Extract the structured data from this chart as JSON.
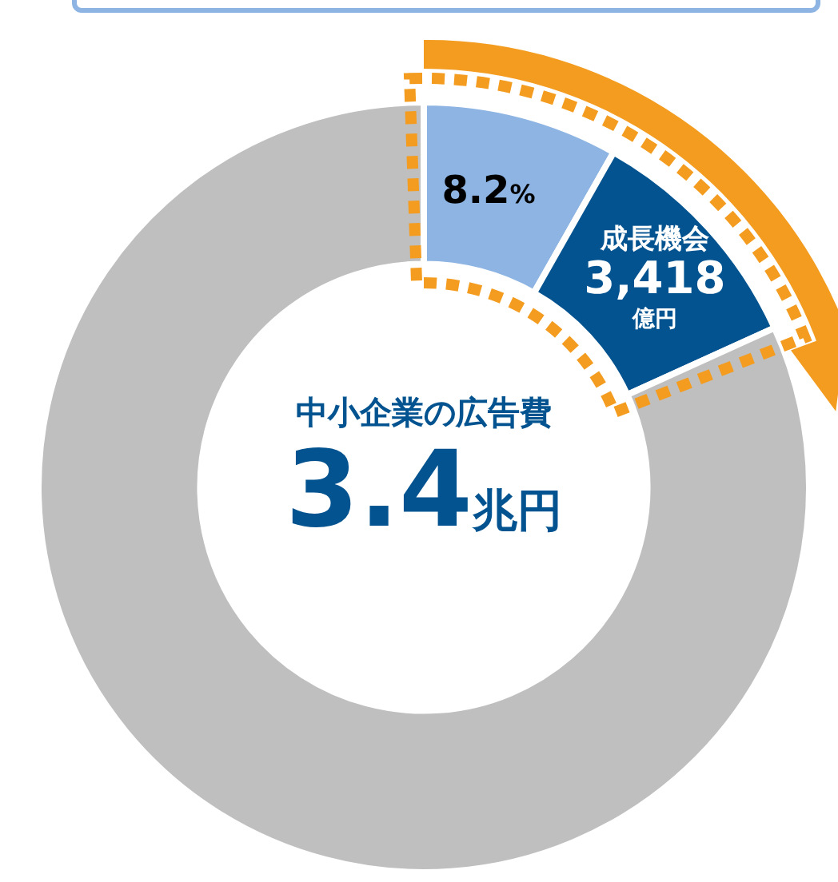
{
  "chart_data": {
    "type": "donut",
    "categories": [
      null,
      "成長機会",
      null
    ],
    "values": [
      8.2,
      10.0,
      81.8
    ],
    "colors": [
      "#8db4e2",
      "#02538f",
      "#bfbfbf"
    ],
    "value_labels": [
      "8.2%",
      null,
      null
    ],
    "annotations": [
      "中小企業の広告費",
      "3.4兆円",
      {
        "text": "3,418億円",
        "x": "成長機会"
      }
    ],
    "legend": false
  }
}
